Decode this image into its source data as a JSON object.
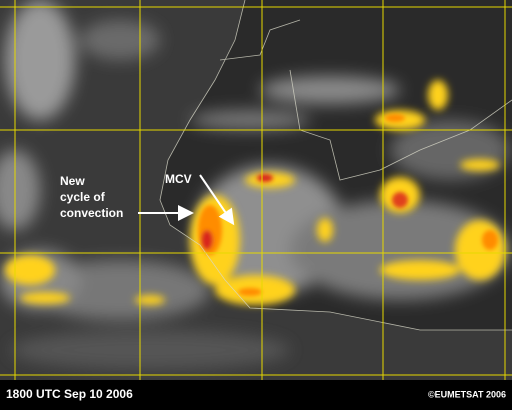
{
  "image": {
    "annotations": [
      {
        "lines": [
          "New",
          "cycle of",
          "convection"
        ]
      },
      {
        "lines": [
          "MCV"
        ]
      }
    ],
    "footer": {
      "timestamp": "1800 UTC  Sep 10 2006",
      "credit": "©EUMETSAT 2006"
    }
  }
}
